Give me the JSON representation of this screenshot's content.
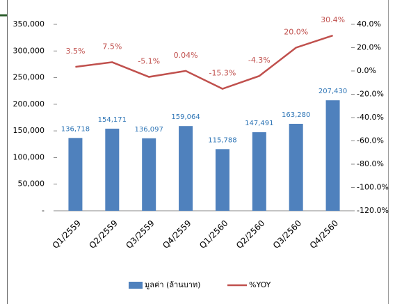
{
  "chart_data": {
    "type": "bar",
    "categories": [
      "Q1/2559",
      "Q2/2559",
      "Q3/2559",
      "Q4/2559",
      "Q1/2560",
      "Q2/2560",
      "Q3/2560",
      "Q4/2560"
    ],
    "series": [
      {
        "name": "มูลค่า (ล้านบาท)",
        "color": "#4f81bd",
        "kind": "bar",
        "values": [
          136718,
          154171,
          136097,
          159064,
          115788,
          147491,
          163280,
          207430
        ],
        "value_labels": [
          "136,718",
          "154,171",
          "136,097",
          "159,064",
          "115,788",
          "147,491",
          "163,280",
          "207,430"
        ]
      },
      {
        "name": "%YOY",
        "color": "#c0504d",
        "kind": "line",
        "axis": "y2",
        "values": [
          3.5,
          7.5,
          -5.1,
          0.04,
          -15.3,
          -4.3,
          20.0,
          30.4
        ],
        "value_labels": [
          "3.5%",
          "7.5%",
          "-5.1%",
          "0.04%",
          "-15.3%",
          "-4.3%",
          "20.0%",
          "30.4%"
        ]
      }
    ],
    "ylim": [
      0,
      350000
    ],
    "yticks": [
      {
        "value": 0,
        "label": "-"
      },
      {
        "value": 50000,
        "label": "50,000"
      },
      {
        "value": 100000,
        "label": "100,000"
      },
      {
        "value": 150000,
        "label": "150,000"
      },
      {
        "value": 200000,
        "label": "200,000"
      },
      {
        "value": 250000,
        "label": "250,000"
      },
      {
        "value": 300000,
        "label": "300,000"
      },
      {
        "value": 350000,
        "label": "350,000"
      }
    ],
    "y2lim": [
      -120,
      40
    ],
    "y2ticks": [
      {
        "value": -120,
        "label": "-120.0%"
      },
      {
        "value": -100,
        "label": "-100.0%"
      },
      {
        "value": -80,
        "label": "-80.0%"
      },
      {
        "value": -60,
        "label": "-60.0%"
      },
      {
        "value": -40,
        "label": "-40.0%"
      },
      {
        "value": -20,
        "label": "-20.0%"
      },
      {
        "value": 0,
        "label": "0.0%"
      },
      {
        "value": 20,
        "label": "20.0%"
      },
      {
        "value": 40,
        "label": "40.0%"
      }
    ],
    "legend": "bottom"
  }
}
